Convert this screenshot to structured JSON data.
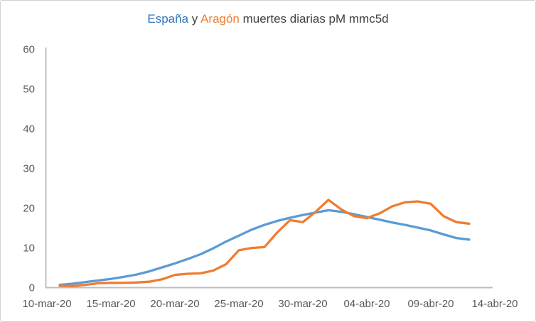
{
  "title": {
    "parts": [
      {
        "text": "España",
        "color": "#2e75b6"
      },
      {
        "text": " y ",
        "color": "#404040"
      },
      {
        "text": "Aragón",
        "color": "#ed7d31"
      },
      {
        "text": " muertes diarias pM mmc5d",
        "color": "#404040"
      }
    ]
  },
  "chart_data": {
    "type": "line",
    "title": "España y Aragón muertes diarias pM mmc5d",
    "xlabel": "",
    "ylabel": "",
    "ylim": [
      0,
      60
    ],
    "y_ticks": [
      0,
      10,
      20,
      30,
      40,
      50,
      60
    ],
    "x_tick_labels": [
      "10-mar-20",
      "15-mar-20",
      "20-mar-20",
      "25-mar-20",
      "30-mar-20",
      "04-abr-20",
      "09-abr-20",
      "14-abr-20"
    ],
    "grid": false,
    "legend_position": "none (series identified by colored words in title)",
    "x": [
      "11-mar-20",
      "12-mar-20",
      "13-mar-20",
      "14-mar-20",
      "15-mar-20",
      "16-mar-20",
      "17-mar-20",
      "18-mar-20",
      "19-mar-20",
      "20-mar-20",
      "21-mar-20",
      "22-mar-20",
      "23-mar-20",
      "24-mar-20",
      "25-mar-20",
      "26-mar-20",
      "27-mar-20",
      "28-mar-20",
      "29-mar-20",
      "30-mar-20",
      "31-mar-20",
      "01-abr-20",
      "02-abr-20",
      "03-abr-20",
      "04-abr-20",
      "05-abr-20",
      "06-abr-20",
      "07-abr-20",
      "08-abr-20",
      "09-abr-20",
      "10-abr-20",
      "11-abr-20",
      "12-abr-20"
    ],
    "series": [
      {
        "name": "España",
        "color": "#5b9bd5",
        "values": [
          0.6,
          0.9,
          1.3,
          1.7,
          2.1,
          2.6,
          3.2,
          4.0,
          5.0,
          6.0,
          7.1,
          8.3,
          9.8,
          11.5,
          13.0,
          14.5,
          15.7,
          16.7,
          17.5,
          18.2,
          18.8,
          19.4,
          19.0,
          18.4,
          17.7,
          17.0,
          16.3,
          15.7,
          15.0,
          14.3,
          13.3,
          12.4,
          12.0
        ]
      },
      {
        "name": "Aragón",
        "color": "#ed7d31",
        "values": [
          0.4,
          0.3,
          0.6,
          1.0,
          1.1,
          1.1,
          1.2,
          1.4,
          2.0,
          3.1,
          3.4,
          3.5,
          4.2,
          5.8,
          9.3,
          9.9,
          10.1,
          13.8,
          16.9,
          16.4,
          19.0,
          22.0,
          19.6,
          17.9,
          17.4,
          18.6,
          20.4,
          21.4,
          21.6,
          21.0,
          17.9,
          16.4,
          16.0
        ]
      }
    ]
  },
  "axes": {
    "line_color": "#bfbfbf",
    "tick_label_color": "#595959"
  }
}
